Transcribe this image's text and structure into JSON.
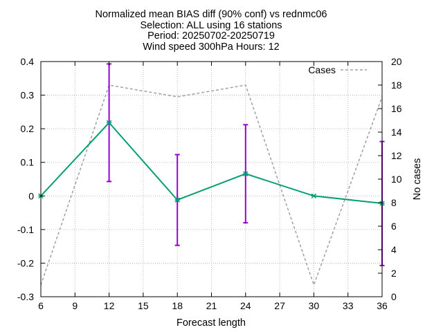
{
  "chart_data": {
    "type": "line",
    "title_lines": [
      "Normalized mean BIAS diff (90% conf) vs rednmc06",
      "Selection: ALL using    16 stations",
      "Period: 20250702-20250719",
      "Wind speed 300hPa   Hours: 12"
    ],
    "xlabel": "Forecast length",
    "ylabel": "",
    "y2label": "No cases",
    "xlim": [
      6,
      36
    ],
    "ylim": [
      -0.3,
      0.4
    ],
    "y2lim": [
      0,
      20
    ],
    "xticks": [
      "6",
      "9",
      "12",
      "15",
      "18",
      "21",
      "24",
      "27",
      "30",
      "33",
      "36"
    ],
    "yticks": [
      "-0.3",
      "-0.2",
      "-0.1",
      "0",
      "0.1",
      "0.2",
      "0.3",
      "0.4"
    ],
    "y2ticks": [
      "0",
      "2",
      "4",
      "6",
      "8",
      "10",
      "12",
      "14",
      "16",
      "18",
      "20"
    ],
    "grid": true,
    "legend_position": "top-right",
    "series": [
      {
        "axis": "y",
        "color": "#009e73",
        "errorbar_color": "#9400d3",
        "points": [
          {
            "x": 6,
            "y": 0.0,
            "low": null,
            "high": null
          },
          {
            "x": 12,
            "y": 0.218,
            "low": 0.043,
            "high": 0.393
          },
          {
            "x": 18,
            "y": -0.012,
            "low": -0.147,
            "high": 0.123
          },
          {
            "x": 24,
            "y": 0.066,
            "low": -0.08,
            "high": 0.212
          },
          {
            "x": 30,
            "y": 0.0,
            "low": null,
            "high": null
          },
          {
            "x": 36,
            "y": -0.022,
            "low": -0.207,
            "high": 0.162
          }
        ]
      },
      {
        "name": "Cases",
        "axis": "y2",
        "color": "#a0a0a0",
        "dashed": true,
        "points": [
          {
            "x": 6,
            "y": 1
          },
          {
            "x": 12,
            "y": 18
          },
          {
            "x": 18,
            "y": 17
          },
          {
            "x": 24,
            "y": 18
          },
          {
            "x": 30,
            "y": 1
          },
          {
            "x": 36,
            "y": 17
          }
        ]
      }
    ]
  }
}
